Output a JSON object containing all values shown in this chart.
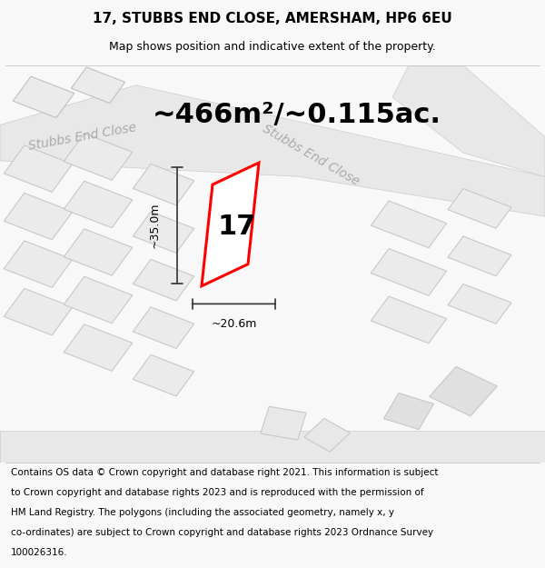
{
  "title_line1": "17, STUBBS END CLOSE, AMERSHAM, HP6 6EU",
  "title_line2": "Map shows position and indicative extent of the property.",
  "area_text": "~466m²/~0.115ac.",
  "street_label1": "Stubbs End Close",
  "street_label2": "Stubbs End Close",
  "number_label": "17",
  "dim_height": "~35.0m",
  "dim_width": "~20.6m",
  "footer_lines": [
    "Contains OS data © Crown copyright and database right 2021. This information is subject",
    "to Crown copyright and database rights 2023 and is reproduced with the permission of",
    "HM Land Registry. The polygons (including the associated geometry, namely x, y",
    "co-ordinates) are subject to Crown copyright and database rights 2023 Ordnance Survey",
    "100026316."
  ],
  "bg_color": "#f8f8f8",
  "map_bg": "#ffffff",
  "highlight_stroke": "#ff0000",
  "dim_color": "#333333",
  "title_fontsize": 11,
  "subtitle_fontsize": 9,
  "area_fontsize": 22,
  "number_fontsize": 22,
  "footer_fontsize": 7.5
}
